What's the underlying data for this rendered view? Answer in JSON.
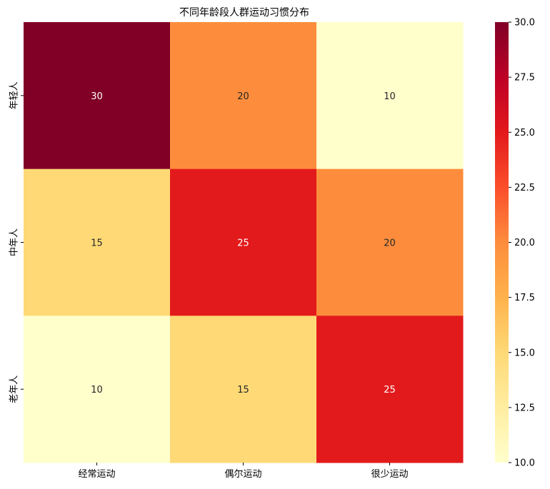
{
  "chart_data": {
    "type": "heatmap",
    "title": "不同年龄段人群运动习惯分布",
    "xlabel": "",
    "ylabel": "",
    "x_categories": [
      "经常运动",
      "偶尔运动",
      "很少运动"
    ],
    "y_categories": [
      "年轻人",
      "中年人",
      "老年人"
    ],
    "values": [
      [
        30,
        20,
        10
      ],
      [
        15,
        25,
        20
      ],
      [
        10,
        15,
        25
      ]
    ],
    "colormap": "YlOrRd",
    "colorbar": {
      "min": 10,
      "max": 30,
      "ticks": [
        "10.0",
        "12.5",
        "15.0",
        "17.5",
        "20.0",
        "22.5",
        "25.0",
        "27.5",
        "30.0"
      ]
    },
    "annotations": true
  }
}
